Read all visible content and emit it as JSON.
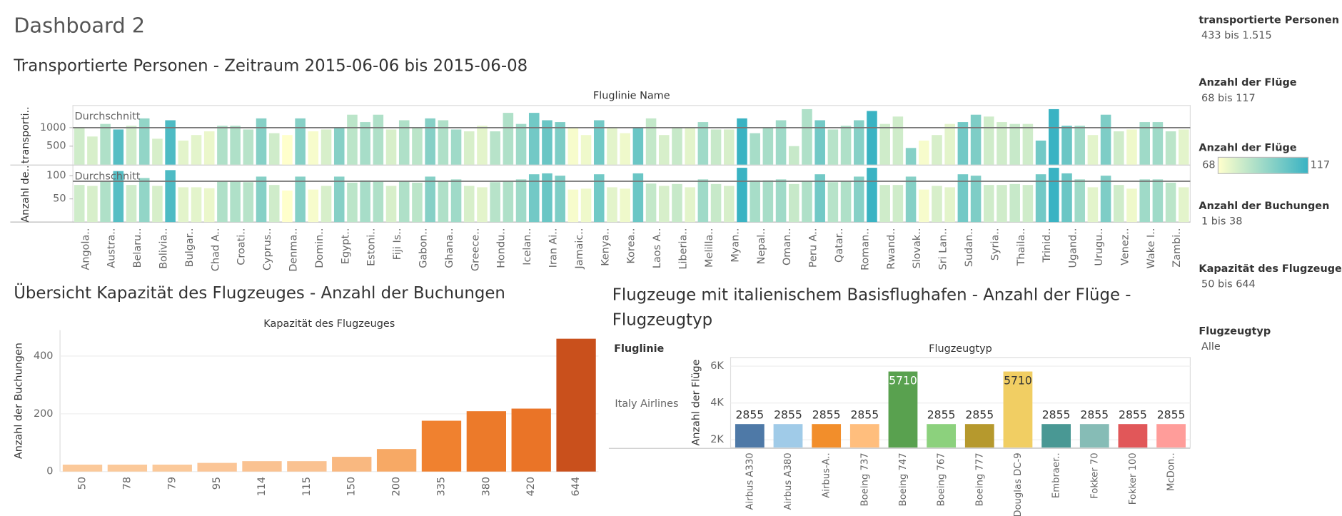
{
  "dashboard_title": "Dashboard 2",
  "filters": [
    {
      "title": "transportierte Personen",
      "value": "433 bis 1.515"
    },
    {
      "title": "Anzahl der Flüge",
      "value": "68 bis 117"
    },
    {
      "title": "Anzahl der Buchungen",
      "value": "1 bis 38"
    },
    {
      "title": "Kapazität des Flugzeuges",
      "value": "50 bis 644"
    },
    {
      "title": "Flugzeugtyp",
      "value": "Alle"
    }
  ],
  "color_legend": {
    "title": "Anzahl der Flüge",
    "min": 68,
    "max": 117,
    "colors": [
      "#ffffcc",
      "#3ab3c3"
    ]
  },
  "chart_data": [
    {
      "type": "bar",
      "title": "Transportierte Personen - Zeitraum 2015-06-06 bis 2015-06-08",
      "header": "Fluglinie Name",
      "categories": [
        "Angola..",
        null,
        "Austra..",
        null,
        "Belaru..",
        null,
        "Bolivia..",
        null,
        "Bulgar..",
        null,
        "Chad A..",
        null,
        "Croati..",
        null,
        "Cyprus..",
        null,
        "Denma..",
        null,
        "Domin..",
        null,
        "Egypt..",
        null,
        "Estoni..",
        null,
        "Fiji Is..",
        null,
        "Gabon..",
        null,
        "Ghana..",
        null,
        "Greece..",
        null,
        "Hondu..",
        null,
        "Icelan..",
        null,
        "Iran Ai..",
        null,
        "Jamaic..",
        null,
        "Kenya..",
        null,
        "Korea..",
        null,
        "Laos A..",
        null,
        "Liberia..",
        null,
        "Melilla..",
        null,
        "Myan..",
        null,
        "Nepal..",
        null,
        "Oman..",
        null,
        "Peru A..",
        null,
        "Qatar..",
        null,
        "Roman..",
        null,
        "Rwand..",
        null,
        "Slovak..",
        null,
        "Sri Lan..",
        null,
        "Sudan..",
        null,
        "Syria..",
        null,
        "Thaila..",
        null,
        "Trinid..",
        null,
        "Ugand..",
        null,
        "Urugu..",
        null,
        "Venez..",
        null,
        "Wake I..",
        null,
        "Zambi..",
        null
      ],
      "series": [
        {
          "name": "transporti..",
          "ylim": [
            0,
            1600
          ],
          "yticks": [
            500,
            1000
          ],
          "reference_label": "Durchschnitt",
          "reference_value": 1000,
          "values": [
            1000,
            760,
            1100,
            950,
            1050,
            1250,
            700,
            1200,
            650,
            800,
            900,
            1050,
            1050,
            950,
            1250,
            850,
            800,
            1250,
            900,
            950,
            1000,
            1350,
            1150,
            1350,
            950,
            1200,
            1000,
            1250,
            1200,
            950,
            900,
            1050,
            900,
            1400,
            1100,
            1400,
            1200,
            1150,
            1000,
            800,
            1200,
            1000,
            850,
            1000,
            1250,
            800,
            1000,
            1000,
            1150,
            950,
            950,
            1250,
            850,
            1000,
            1200,
            500,
            1500,
            1200,
            950,
            1050,
            1200,
            1450,
            1100,
            1300,
            450,
            650,
            800,
            1100,
            1150,
            1350,
            1300,
            1150,
            1100,
            1100,
            650,
            1500,
            1050,
            1050,
            800,
            1350,
            900,
            950,
            1150,
            1150,
            900,
            950
          ]
        },
        {
          "name": "Anzahl de..",
          "ylim": [
            0,
            122
          ],
          "yticks": [
            50,
            100
          ],
          "reference_label": "Durchschnitt",
          "reference_value": 88,
          "values": [
            80,
            78,
            88,
            110,
            80,
            95,
            78,
            112,
            75,
            75,
            73,
            88,
            88,
            86,
            98,
            80,
            68,
            98,
            70,
            78,
            98,
            85,
            90,
            88,
            78,
            88,
            85,
            98,
            88,
            92,
            78,
            75,
            86,
            88,
            92,
            103,
            105,
            100,
            70,
            72,
            103,
            75,
            72,
            105,
            83,
            78,
            82,
            75,
            92,
            82,
            78,
            117,
            90,
            90,
            92,
            82,
            88,
            103,
            86,
            88,
            98,
            117,
            80,
            80,
            98,
            70,
            78,
            75,
            103,
            100,
            80,
            80,
            82,
            80,
            103,
            117,
            105,
            92,
            75,
            100,
            80,
            72,
            92,
            92,
            85,
            75
          ]
        }
      ]
    },
    {
      "type": "bar",
      "title": "Übersicht Kapazität des Flugzeuges - Anzahl der Buchungen",
      "header": "Kapazität des Flugzeuges",
      "y_label": "Anzahl der Buchungen",
      "categories": [
        "50",
        "78",
        "79",
        "95",
        "114",
        "115",
        "150",
        "200",
        "335",
        "380",
        "420",
        "644"
      ],
      "values": [
        24,
        24,
        24,
        30,
        36,
        36,
        51,
        78,
        176,
        209,
        218,
        460
      ],
      "colors": [
        "#fbc99a",
        "#fbc99a",
        "#fbc99a",
        "#fbc596",
        "#fac291",
        "#fac291",
        "#f9b880",
        "#f7a965",
        "#f0812f",
        "#ec7a2a",
        "#ea7427",
        "#c9501c"
      ],
      "ylim": [
        0,
        490
      ],
      "yticks": [
        0,
        200,
        400
      ],
      "grid": true
    },
    {
      "type": "bar",
      "title": "Flugzeuge mit italienischem Basisflughafen - Anzahl der Flüge - Flugzeugtyp",
      "header": "Flugzeugtyp",
      "row_header": "Fluglinie",
      "row": "Italy Airlines",
      "y_label": "Anzahl der Flüge",
      "categories": [
        "Airbus A330",
        "Airbus A380",
        "Airbus-A..",
        "Boeing 737",
        "Boeing 747",
        "Boeing 767",
        "Boeing 777",
        "Douglas DC-9",
        "Embraer..",
        "Fokker 70",
        "Fokker 100",
        "McDon.."
      ],
      "values": [
        2855,
        2855,
        2855,
        2855,
        5710,
        2855,
        2855,
        5710,
        2855,
        2855,
        2855,
        2855
      ],
      "colors": [
        "#4e79a7",
        "#a0cbe8",
        "#f28e2b",
        "#ffbe7d",
        "#59a14f",
        "#8cd17d",
        "#b6992d",
        "#f1ce63",
        "#499894",
        "#86bcb6",
        "#e15759",
        "#ff9d9a"
      ],
      "ylim": [
        1580,
        6470
      ],
      "yticks": [
        {
          "value": 2000,
          "label": "2K"
        },
        {
          "value": 4000,
          "label": "4K"
        },
        {
          "value": 6000,
          "label": "6K"
        }
      ],
      "grid": true
    }
  ]
}
